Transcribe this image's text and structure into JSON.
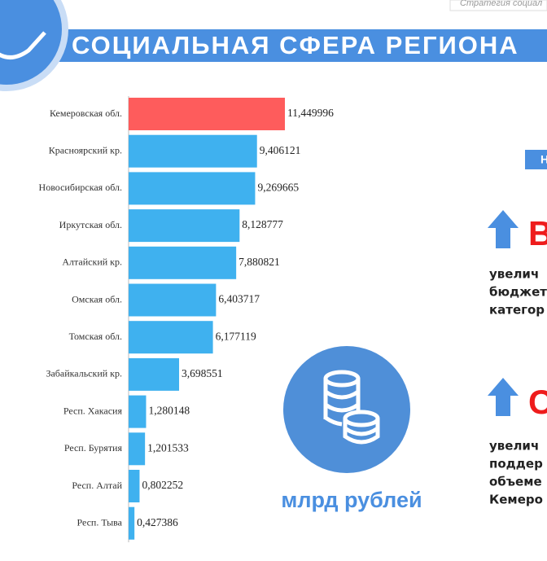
{
  "header": {
    "title": "СОЦИАЛЬНАЯ СФЕРА РЕГИОНА",
    "top_note": "Стратегия социал"
  },
  "chart_data": {
    "type": "bar",
    "orientation": "horizontal",
    "categories": [
      "Кемеровская обл.",
      "Красноярский кр.",
      "Новосибирская обл.",
      "Иркутская обл.",
      "Алтайский кр.",
      "Омская обл.",
      "Томская обл.",
      "Забайкальский кр.",
      "Респ. Хакасия",
      "Респ. Бурятия",
      "Респ. Алтай",
      "Респ. Тыва"
    ],
    "values": [
      11.449996,
      9.406121,
      9.269665,
      8.128777,
      7.880821,
      6.403717,
      6.177119,
      3.698551,
      1.280148,
      1.201533,
      0.802252,
      0.427386
    ],
    "value_labels": [
      "11,449996",
      "9,406121",
      "9,269665",
      "8,128777",
      "7,880821",
      "6,403717",
      "6,177119",
      "3,698551",
      "1,280148",
      "1,201533",
      "0,802252",
      "0,427386"
    ],
    "colors": [
      "#fe5c5c",
      "#3fb1ef",
      "#3fb1ef",
      "#3fb1ef",
      "#3fb1ef",
      "#3fb1ef",
      "#3fb1ef",
      "#3fb1ef",
      "#3fb1ef",
      "#3fb1ef",
      "#3fb1ef",
      "#3fb1ef"
    ],
    "unit_label": "млрд рублей"
  },
  "side": {
    "badge": "Н",
    "block1": {
      "letter": "В",
      "lines": [
        "увелич",
        "бюджет",
        "категор"
      ]
    },
    "block2": {
      "letter": "С",
      "lines": [
        "увелич",
        "поддер",
        "объеме",
        "Кемеро"
      ]
    }
  }
}
